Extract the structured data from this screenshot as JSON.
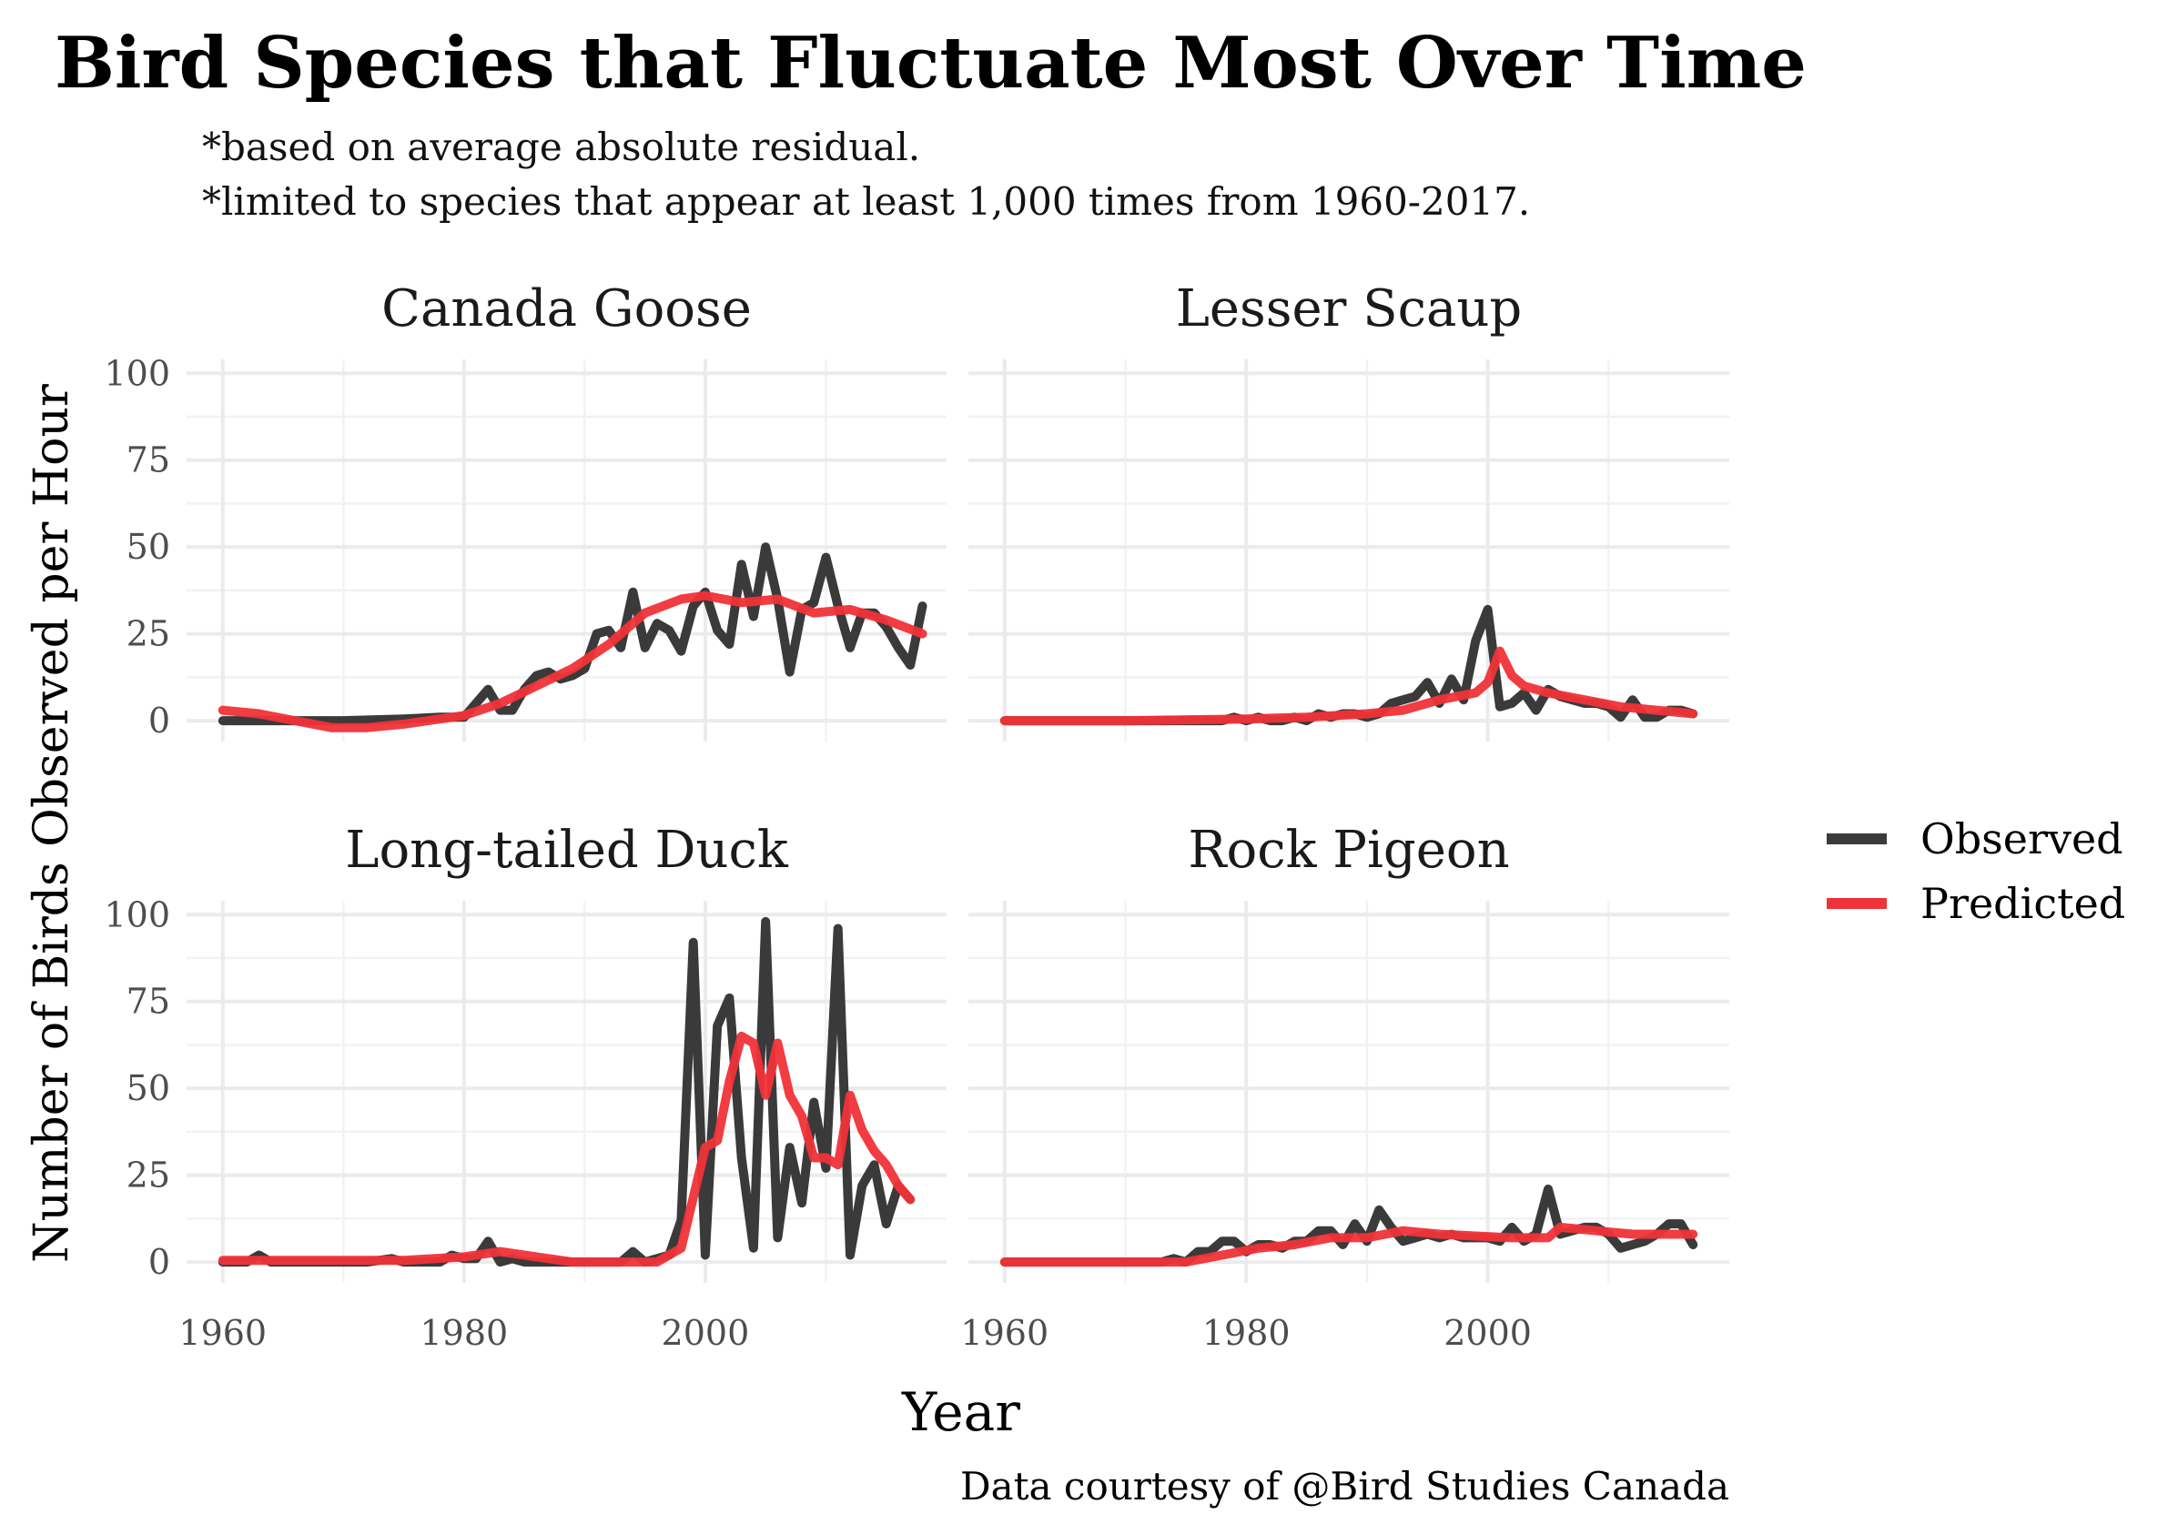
{
  "chart_data": {
    "type": "line",
    "title": "Bird Species that Fluctuate Most Over Time",
    "subtitle_lines": [
      "*based on average absolute residual.",
      "*limited to species that appear at least 1,000 times from 1960-2017."
    ],
    "xlabel": "Year",
    "ylabel": "Number of Birds Observed per Hour",
    "caption": "Data courtesy of @Bird Studies Canada",
    "xlim": [
      1960,
      2017
    ],
    "ylim": [
      0,
      100
    ],
    "x_ticks": [
      1960,
      1980,
      2000
    ],
    "y_ticks": [
      0,
      25,
      50,
      75,
      100
    ],
    "grid": true,
    "legend": {
      "position": "right",
      "entries": [
        {
          "label": "Observed",
          "color": "#3a3a3a"
        },
        {
          "label": "Predicted",
          "color": "#f03238"
        }
      ]
    },
    "panels": [
      {
        "name": "Canada Goose",
        "observed": [
          [
            1960,
            0
          ],
          [
            1962,
            0
          ],
          [
            1965,
            0
          ],
          [
            1970,
            0
          ],
          [
            1975,
            0.5
          ],
          [
            1978,
            1
          ],
          [
            1980,
            1
          ],
          [
            1982,
            9
          ],
          [
            1983,
            3
          ],
          [
            1984,
            3
          ],
          [
            1985,
            9
          ],
          [
            1986,
            13
          ],
          [
            1987,
            14
          ],
          [
            1988,
            12
          ],
          [
            1989,
            13
          ],
          [
            1990,
            15
          ],
          [
            1991,
            25
          ],
          [
            1992,
            26
          ],
          [
            1993,
            21
          ],
          [
            1994,
            37
          ],
          [
            1995,
            21
          ],
          [
            1996,
            28
          ],
          [
            1997,
            26
          ],
          [
            1998,
            20
          ],
          [
            1999,
            33
          ],
          [
            2000,
            37
          ],
          [
            2001,
            26
          ],
          [
            2002,
            22
          ],
          [
            2003,
            45
          ],
          [
            2004,
            30
          ],
          [
            2005,
            50
          ],
          [
            2006,
            35
          ],
          [
            2007,
            14
          ],
          [
            2008,
            32
          ],
          [
            2009,
            34
          ],
          [
            2010,
            47
          ],
          [
            2011,
            33
          ],
          [
            2012,
            21
          ],
          [
            2013,
            31
          ],
          [
            2014,
            31
          ],
          [
            2015,
            27
          ],
          [
            2016,
            21
          ],
          [
            2017,
            16
          ],
          [
            2018,
            33
          ]
        ],
        "predicted": [
          [
            1960,
            3
          ],
          [
            1963,
            2
          ],
          [
            1966,
            0
          ],
          [
            1969,
            -2
          ],
          [
            1972,
            -2
          ],
          [
            1975,
            -1
          ],
          [
            1978,
            0.5
          ],
          [
            1980,
            1.5
          ],
          [
            1983,
            5
          ],
          [
            1986,
            10
          ],
          [
            1989,
            15
          ],
          [
            1992,
            22
          ],
          [
            1995,
            31
          ],
          [
            1998,
            35
          ],
          [
            2000,
            36
          ],
          [
            2003,
            34
          ],
          [
            2006,
            35
          ],
          [
            2009,
            31
          ],
          [
            2012,
            32
          ],
          [
            2015,
            29
          ],
          [
            2018,
            25
          ]
        ]
      },
      {
        "name": "Lesser Scaup",
        "observed": [
          [
            1960,
            0
          ],
          [
            1965,
            0
          ],
          [
            1970,
            0
          ],
          [
            1975,
            0
          ],
          [
            1978,
            0
          ],
          [
            1979,
            1
          ],
          [
            1980,
            0
          ],
          [
            1981,
            1
          ],
          [
            1982,
            0
          ],
          [
            1983,
            0
          ],
          [
            1984,
            1
          ],
          [
            1985,
            0
          ],
          [
            1986,
            2
          ],
          [
            1987,
            1
          ],
          [
            1988,
            2
          ],
          [
            1989,
            2
          ],
          [
            1990,
            1
          ],
          [
            1991,
            2
          ],
          [
            1992,
            5
          ],
          [
            1993,
            6
          ],
          [
            1994,
            7
          ],
          [
            1995,
            11
          ],
          [
            1996,
            5
          ],
          [
            1997,
            12
          ],
          [
            1998,
            6
          ],
          [
            1999,
            23
          ],
          [
            2000,
            32
          ],
          [
            2001,
            4
          ],
          [
            2002,
            5
          ],
          [
            2003,
            8
          ],
          [
            2004,
            3
          ],
          [
            2005,
            9
          ],
          [
            2006,
            7
          ],
          [
            2007,
            6
          ],
          [
            2008,
            5
          ],
          [
            2009,
            5
          ],
          [
            2010,
            4
          ],
          [
            2011,
            1
          ],
          [
            2012,
            6
          ],
          [
            2013,
            1
          ],
          [
            2014,
            1
          ],
          [
            2015,
            3
          ],
          [
            2016,
            3
          ],
          [
            2017,
            2
          ]
        ],
        "predicted": [
          [
            1960,
            0
          ],
          [
            1970,
            0
          ],
          [
            1980,
            0.5
          ],
          [
            1985,
            1
          ],
          [
            1990,
            2
          ],
          [
            1993,
            3
          ],
          [
            1996,
            6
          ],
          [
            1999,
            8
          ],
          [
            2000,
            11
          ],
          [
            2001,
            20
          ],
          [
            2002,
            13
          ],
          [
            2003,
            10
          ],
          [
            2005,
            8
          ],
          [
            2008,
            6
          ],
          [
            2011,
            4
          ],
          [
            2014,
            3
          ],
          [
            2017,
            2
          ]
        ]
      },
      {
        "name": "Long-tailed Duck",
        "observed": [
          [
            1960,
            0
          ],
          [
            1962,
            0
          ],
          [
            1963,
            2
          ],
          [
            1964,
            0
          ],
          [
            1966,
            0
          ],
          [
            1970,
            0
          ],
          [
            1972,
            0
          ],
          [
            1974,
            1
          ],
          [
            1975,
            0
          ],
          [
            1978,
            0
          ],
          [
            1979,
            2
          ],
          [
            1980,
            1
          ],
          [
            1981,
            1
          ],
          [
            1982,
            6
          ],
          [
            1983,
            0
          ],
          [
            1984,
            1
          ],
          [
            1985,
            0
          ],
          [
            1990,
            0
          ],
          [
            1993,
            0
          ],
          [
            1994,
            3
          ],
          [
            1995,
            0
          ],
          [
            1996,
            1
          ],
          [
            1997,
            2
          ],
          [
            1998,
            12
          ],
          [
            1999,
            92
          ],
          [
            2000,
            2
          ],
          [
            2001,
            68
          ],
          [
            2002,
            76
          ],
          [
            2003,
            30
          ],
          [
            2004,
            4
          ],
          [
            2005,
            98
          ],
          [
            2006,
            7
          ],
          [
            2007,
            33
          ],
          [
            2008,
            17
          ],
          [
            2009,
            46
          ],
          [
            2010,
            27
          ],
          [
            2011,
            96
          ],
          [
            2012,
            2
          ],
          [
            2013,
            22
          ],
          [
            2014,
            28
          ],
          [
            2015,
            11
          ],
          [
            2016,
            22
          ],
          [
            2017,
            18
          ]
        ],
        "predicted": [
          [
            1960,
            0.5
          ],
          [
            1965,
            0.5
          ],
          [
            1970,
            0.5
          ],
          [
            1975,
            0.5
          ],
          [
            1980,
            1.5
          ],
          [
            1983,
            3
          ],
          [
            1986,
            1.5
          ],
          [
            1989,
            0
          ],
          [
            1993,
            0
          ],
          [
            1996,
            0
          ],
          [
            1998,
            4
          ],
          [
            2000,
            33
          ],
          [
            2001,
            35
          ],
          [
            2002,
            52
          ],
          [
            2003,
            65
          ],
          [
            2004,
            63
          ],
          [
            2005,
            48
          ],
          [
            2006,
            63
          ],
          [
            2007,
            48
          ],
          [
            2008,
            42
          ],
          [
            2009,
            30
          ],
          [
            2010,
            30
          ],
          [
            2011,
            28
          ],
          [
            2012,
            48
          ],
          [
            2013,
            38
          ],
          [
            2014,
            32
          ],
          [
            2015,
            28
          ],
          [
            2016,
            22
          ],
          [
            2017,
            18
          ]
        ]
      },
      {
        "name": "Rock Pigeon",
        "observed": [
          [
            1960,
            0
          ],
          [
            1965,
            0
          ],
          [
            1970,
            0
          ],
          [
            1973,
            0
          ],
          [
            1974,
            1
          ],
          [
            1975,
            0
          ],
          [
            1976,
            3
          ],
          [
            1977,
            3
          ],
          [
            1978,
            6
          ],
          [
            1979,
            6
          ],
          [
            1980,
            3
          ],
          [
            1981,
            5
          ],
          [
            1982,
            5
          ],
          [
            1983,
            4
          ],
          [
            1984,
            6
          ],
          [
            1985,
            6
          ],
          [
            1986,
            9
          ],
          [
            1987,
            9
          ],
          [
            1988,
            5
          ],
          [
            1989,
            11
          ],
          [
            1990,
            6
          ],
          [
            1991,
            15
          ],
          [
            1992,
            10
          ],
          [
            1993,
            6
          ],
          [
            1994,
            7
          ],
          [
            1995,
            8
          ],
          [
            1996,
            7
          ],
          [
            1997,
            8
          ],
          [
            1998,
            7
          ],
          [
            1999,
            7
          ],
          [
            2000,
            7
          ],
          [
            2001,
            6
          ],
          [
            2002,
            10
          ],
          [
            2003,
            6
          ],
          [
            2004,
            8
          ],
          [
            2005,
            21
          ],
          [
            2006,
            8
          ],
          [
            2007,
            9
          ],
          [
            2008,
            10
          ],
          [
            2009,
            10
          ],
          [
            2010,
            8
          ],
          [
            2011,
            4
          ],
          [
            2012,
            5
          ],
          [
            2013,
            6
          ],
          [
            2014,
            8
          ],
          [
            2015,
            11
          ],
          [
            2016,
            11
          ],
          [
            2017,
            5
          ]
        ],
        "predicted": [
          [
            1960,
            0
          ],
          [
            1970,
            0
          ],
          [
            1975,
            0
          ],
          [
            1978,
            2
          ],
          [
            1981,
            4
          ],
          [
            1984,
            5
          ],
          [
            1987,
            7
          ],
          [
            1990,
            7
          ],
          [
            1993,
            9
          ],
          [
            1996,
            8
          ],
          [
            1999,
            7.5
          ],
          [
            2002,
            7
          ],
          [
            2005,
            7
          ],
          [
            2006,
            10
          ],
          [
            2009,
            9
          ],
          [
            2012,
            8
          ],
          [
            2015,
            8
          ],
          [
            2017,
            8
          ]
        ]
      }
    ]
  }
}
